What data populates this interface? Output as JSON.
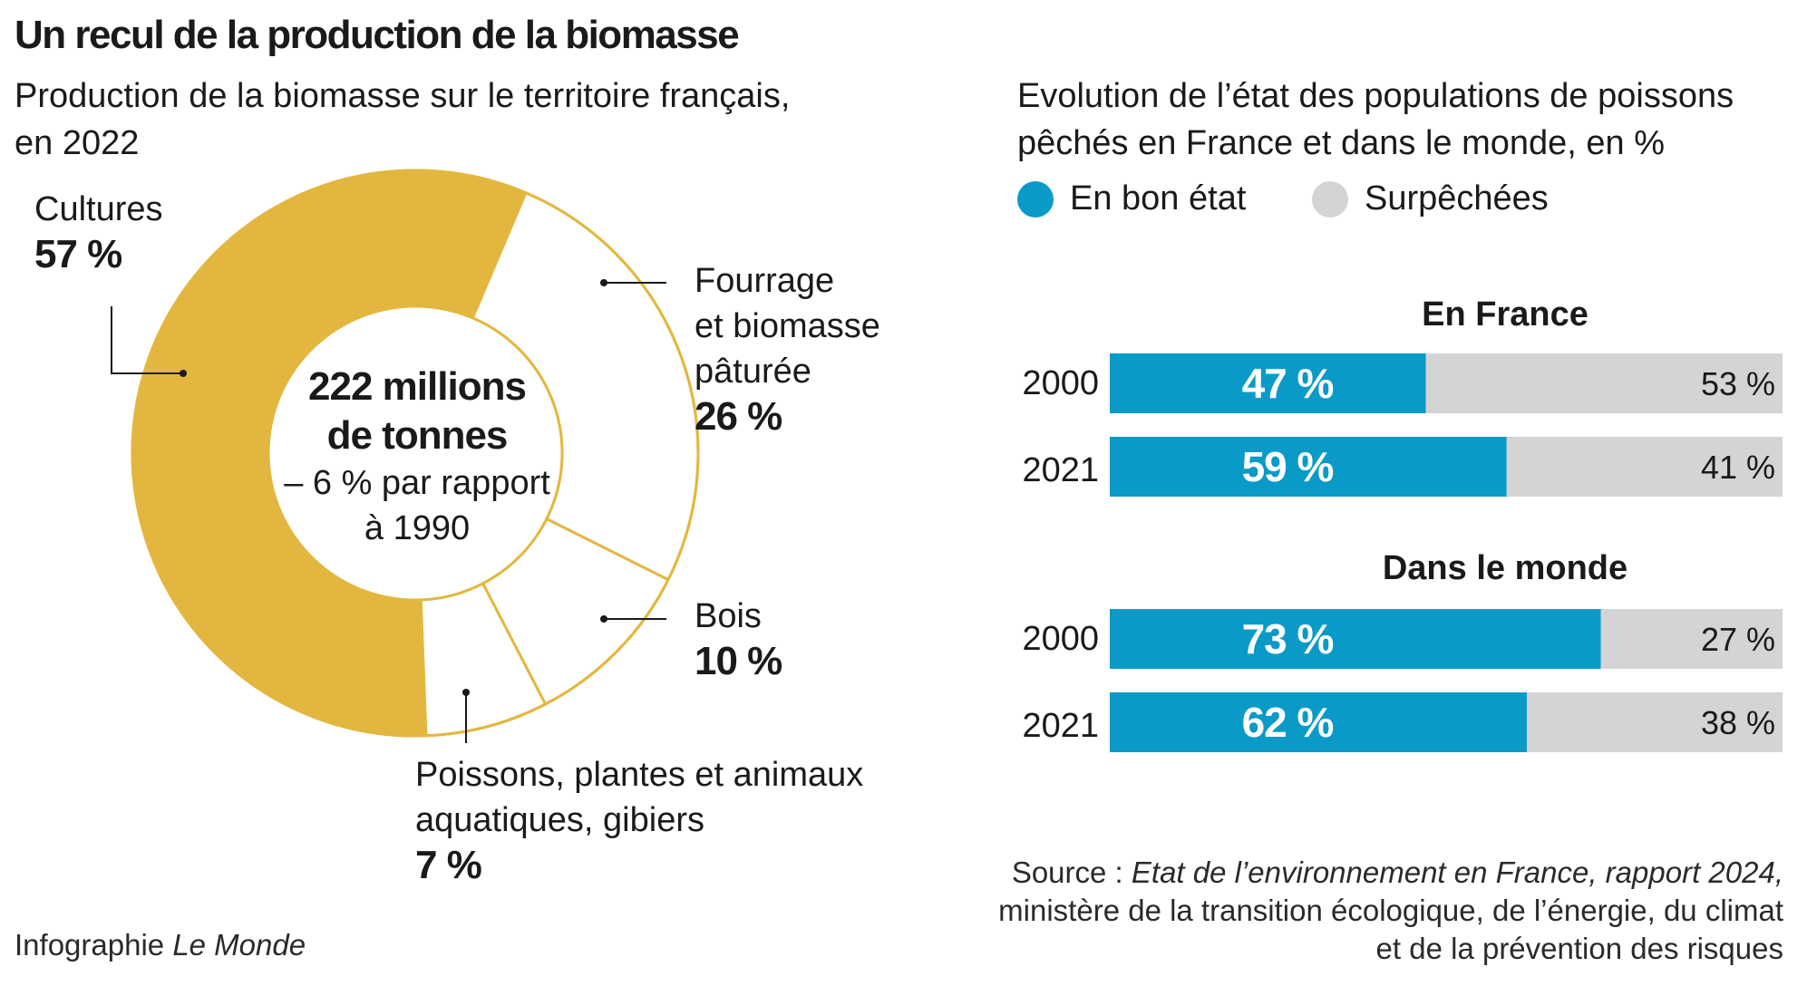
{
  "title": "Un recul de la production de la biomasse",
  "left": {
    "subtitle_line1": "Production de la biomasse sur le territoire français,",
    "subtitle_line2": "en 2022",
    "center_line1": "222 millions",
    "center_line2": "de tonnes",
    "center_line3": "– 6 % par rapport",
    "center_line4": "à 1990"
  },
  "right": {
    "subtitle_line1": "Evolution de l’état des populations de poissons",
    "subtitle_line2": "pêchés en France et dans le monde, en %",
    "legend_good": "En bon état",
    "legend_over": "Surpêchées"
  },
  "colors": {
    "cultures": "#e3b73f",
    "ring_outline": "#e3b73f",
    "good": "#0a9ac8",
    "over": "#d4d4d4"
  },
  "chart_data": [
    {
      "type": "pie",
      "variant": "donut",
      "slices": [
        {
          "label": "Cultures",
          "value_label": "57 %",
          "value": 57
        },
        {
          "label_lines": [
            "Fourrage",
            "et biomasse",
            "pâturée"
          ],
          "value_label": "26 %",
          "value": 26
        },
        {
          "label": "Bois",
          "value_label": "10 %",
          "value": 10
        },
        {
          "label_lines": [
            "Poissons, plantes et animaux",
            "aquatiques, gibiers"
          ],
          "value_label": "7 %",
          "value": 7
        }
      ]
    },
    {
      "type": "bar",
      "orientation": "horizontal",
      "stacked": true,
      "legend": [
        "En bon état",
        "Surpêchées"
      ],
      "xlim": [
        0,
        100
      ],
      "groups": [
        {
          "name": "En France",
          "rows": [
            {
              "year": "2000",
              "good": 47,
              "over": 53,
              "good_label": "47 %",
              "over_label": "53 %"
            },
            {
              "year": "2021",
              "good": 59,
              "over": 41,
              "good_label": "59 %",
              "over_label": "41 %"
            }
          ]
        },
        {
          "name": "Dans le monde",
          "rows": [
            {
              "year": "2000",
              "good": 73,
              "over": 27,
              "good_label": "73 %",
              "over_label": "27 %"
            },
            {
              "year": "2021",
              "good": 62,
              "over": 38,
              "good_label": "62 %",
              "over_label": "38 %"
            }
          ]
        }
      ]
    }
  ],
  "source": {
    "prefix": "Source : ",
    "italic": "Etat de l’environnement en France, rapport 2024,",
    "line2": "ministère de la transition écologique, de l’énergie, du climat",
    "line3": "et de la prévention des risques"
  },
  "credit": {
    "prefix": "Infographie ",
    "italic": "Le Monde"
  }
}
